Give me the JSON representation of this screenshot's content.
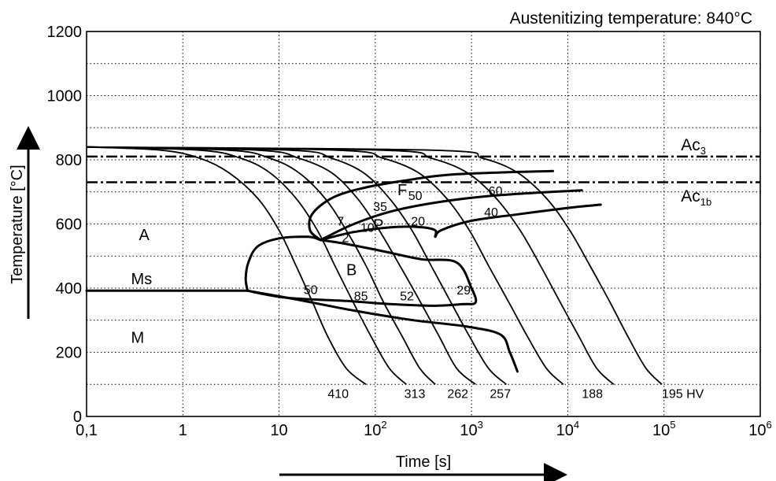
{
  "chart_data": {
    "type": "line",
    "title": "Austenitizing temperature: 840°C",
    "xlabel": "Time [s]",
    "ylabel": "Temperature [°C]",
    "x_scale": "log",
    "xlim": [
      0.1,
      1000000
    ],
    "ylim": [
      0,
      1200
    ],
    "grid": true,
    "x_ticks": [
      {
        "v": 0.1,
        "base": "0,1",
        "exp": ""
      },
      {
        "v": 1,
        "base": "1",
        "exp": ""
      },
      {
        "v": 10,
        "base": "10",
        "exp": ""
      },
      {
        "v": 100,
        "base": "10",
        "exp": "2"
      },
      {
        "v": 1000,
        "base": "10",
        "exp": "3"
      },
      {
        "v": 10000,
        "base": "10",
        "exp": "4"
      },
      {
        "v": 100000,
        "base": "10",
        "exp": "5"
      },
      {
        "v": 1000000,
        "base": "10",
        "exp": "6"
      }
    ],
    "y_ticks": [
      {
        "v": 0,
        "label": "0"
      },
      {
        "v": 200,
        "label": "200"
      },
      {
        "v": 400,
        "label": "400"
      },
      {
        "v": 600,
        "label": "600"
      },
      {
        "v": 800,
        "label": "800"
      },
      {
        "v": 1000,
        "label": "1000"
      },
      {
        "v": 1200,
        "label": "1200"
      }
    ],
    "reference_lines": [
      {
        "y": 810,
        "base": "Ac",
        "sub": "3",
        "lx": 150000.0,
        "ly": 830
      },
      {
        "y": 730,
        "base": "Ac",
        "sub": "1b",
        "lx": 150000.0,
        "ly": 670
      }
    ],
    "cooling_curves": [
      {
        "hardness": "410",
        "points": [
          [
            0.1,
            840
          ],
          [
            0.6,
            830
          ],
          [
            1.5,
            805
          ],
          [
            3,
            760
          ],
          [
            6,
            680
          ],
          [
            10,
            580
          ],
          [
            15,
            470
          ],
          [
            22,
            360
          ],
          [
            32,
            250
          ],
          [
            50,
            150
          ],
          [
            80,
            100
          ]
        ]
      },
      {
        "hardness": "313",
        "points": [
          [
            0.1,
            840
          ],
          [
            1.5,
            830
          ],
          [
            4,
            805
          ],
          [
            8,
            760
          ],
          [
            15,
            680
          ],
          [
            25,
            580
          ],
          [
            38,
            470
          ],
          [
            58,
            360
          ],
          [
            90,
            250
          ],
          [
            140,
            150
          ],
          [
            210,
            100
          ]
        ]
      },
      {
        "hardness": "262",
        "points": [
          [
            0.1,
            840
          ],
          [
            3,
            830
          ],
          [
            8,
            805
          ],
          [
            16,
            760
          ],
          [
            30,
            680
          ],
          [
            50,
            580
          ],
          [
            80,
            470
          ],
          [
            120,
            360
          ],
          [
            190,
            250
          ],
          [
            290,
            150
          ],
          [
            420,
            100
          ]
        ]
      },
      {
        "hardness": "257",
        "points": [
          [
            0.1,
            840
          ],
          [
            6,
            830
          ],
          [
            16,
            805
          ],
          [
            35,
            760
          ],
          [
            65,
            680
          ],
          [
            110,
            580
          ],
          [
            180,
            470
          ],
          [
            290,
            360
          ],
          [
            460,
            250
          ],
          [
            700,
            150
          ],
          [
            1100,
            100
          ]
        ]
      },
      {
        "hardness": "",
        "points": [
          [
            0.1,
            840
          ],
          [
            13,
            830
          ],
          [
            35,
            805
          ],
          [
            75,
            760
          ],
          [
            140,
            680
          ],
          [
            240,
            580
          ],
          [
            380,
            470
          ],
          [
            600,
            360
          ],
          [
            950,
            250
          ],
          [
            1500,
            150
          ],
          [
            2300,
            100
          ]
        ]
      },
      {
        "hardness": "188",
        "points": [
          [
            0.1,
            840
          ],
          [
            40,
            830
          ],
          [
            120,
            805
          ],
          [
            280,
            760
          ],
          [
            550,
            680
          ],
          [
            950,
            580
          ],
          [
            1500,
            470
          ],
          [
            2400,
            360
          ],
          [
            3800,
            250
          ],
          [
            6000,
            150
          ],
          [
            9000,
            100
          ]
        ]
      },
      {
        "hardness": "",
        "points": [
          [
            0.1,
            840
          ],
          [
            120,
            830
          ],
          [
            380,
            805
          ],
          [
            900,
            760
          ],
          [
            1800,
            680
          ],
          [
            3200,
            580
          ],
          [
            5200,
            470
          ],
          [
            8200,
            360
          ],
          [
            13000,
            250
          ],
          [
            20000,
            150
          ],
          [
            30000,
            100
          ]
        ]
      },
      {
        "hardness": "195",
        "points": [
          [
            0.1,
            840
          ],
          [
            400,
            830
          ],
          [
            1300,
            805
          ],
          [
            3000,
            760
          ],
          [
            6000,
            680
          ],
          [
            10500,
            580
          ],
          [
            17000,
            470
          ],
          [
            27000,
            360
          ],
          [
            42000,
            250
          ],
          [
            65000,
            150
          ],
          [
            95000,
            100
          ]
        ]
      }
    ],
    "transformation_lines": [
      {
        "name": "ferrite-start",
        "points": [
          [
            27,
            550
          ],
          [
            21,
            580
          ],
          [
            22,
            630
          ],
          [
            35,
            680
          ],
          [
            70,
            710
          ],
          [
            200,
            735
          ],
          [
            700,
            755
          ],
          [
            7000,
            765
          ]
        ]
      },
      {
        "name": "pearlite-start",
        "points": [
          [
            27,
            550
          ],
          [
            60,
            600
          ],
          [
            150,
            640
          ],
          [
            500,
            670
          ],
          [
            2000,
            690
          ],
          [
            14000,
            705
          ]
        ]
      },
      {
        "name": "pearlite-finish",
        "points": [
          [
            27,
            550
          ],
          [
            60,
            575
          ],
          [
            150,
            590
          ],
          [
            300,
            590
          ],
          [
            420,
            580
          ],
          [
            420,
            560
          ],
          [
            480,
            580
          ],
          [
            1000,
            610
          ],
          [
            3000,
            630
          ],
          [
            10000,
            650
          ],
          [
            22000,
            660
          ]
        ]
      },
      {
        "name": "bainite-start",
        "points": [
          [
            27,
            550
          ],
          [
            20,
            560
          ],
          [
            10,
            555
          ],
          [
            6,
            530
          ],
          [
            4.8,
            480
          ],
          [
            4.5,
            430
          ],
          [
            4.7,
            392
          ]
        ]
      },
      {
        "name": "bainite-finish",
        "points": [
          [
            27,
            550
          ],
          [
            45,
            540
          ],
          [
            120,
            515
          ],
          [
            300,
            490
          ],
          [
            700,
            480
          ],
          [
            1000,
            400
          ],
          [
            1100,
            355
          ],
          [
            800,
            350
          ],
          [
            400,
            345
          ],
          [
            150,
            350
          ],
          [
            50,
            360
          ],
          [
            12,
            370
          ],
          [
            4.7,
            392
          ]
        ]
      },
      {
        "name": "martensite-finish",
        "points": [
          [
            4.7,
            392
          ],
          [
            15,
            365
          ],
          [
            60,
            330
          ],
          [
            250,
            300
          ],
          [
            900,
            280
          ],
          [
            2000,
            255
          ],
          [
            2500,
            200
          ],
          [
            3000,
            140
          ]
        ]
      },
      {
        "name": "ms",
        "points": [
          [
            0.1,
            392
          ],
          [
            4.7,
            392
          ]
        ]
      }
    ],
    "annotations": [
      {
        "text": "A",
        "x": 0.35,
        "y": 550
      },
      {
        "text": "Ms",
        "x": 0.29,
        "y": 412
      },
      {
        "text": "M",
        "x": 0.29,
        "y": 230
      },
      {
        "text": "B",
        "x": 50,
        "y": 440
      },
      {
        "text": "F",
        "x": 170,
        "y": 690
      },
      {
        "text": "P",
        "x": 95,
        "y": 580
      },
      {
        "text": "7",
        "x": 40,
        "y": 595
      },
      {
        "text": "35",
        "x": 95,
        "y": 640
      },
      {
        "text": "50",
        "x": 220,
        "y": 675
      },
      {
        "text": "60",
        "x": 1500,
        "y": 690
      },
      {
        "text": "10",
        "x": 70,
        "y": 575
      },
      {
        "text": "2",
        "x": 45,
        "y": 543
      },
      {
        "text": "20",
        "x": 235,
        "y": 595
      },
      {
        "text": "40",
        "x": 1350,
        "y": 623
      },
      {
        "text": "50",
        "x": 18,
        "y": 382
      },
      {
        "text": "85",
        "x": 60,
        "y": 362
      },
      {
        "text": "52",
        "x": 180,
        "y": 362
      },
      {
        "text": "29",
        "x": 700,
        "y": 380
      },
      {
        "text": "410",
        "x": 32,
        "y": 58
      },
      {
        "text": "313",
        "x": 200,
        "y": 58
      },
      {
        "text": "262",
        "x": 560,
        "y": 58
      },
      {
        "text": "257",
        "x": 1550,
        "y": 58
      },
      {
        "text": "188",
        "x": 14000,
        "y": 58
      },
      {
        "text": "195 HV",
        "x": 95000,
        "y": 58
      }
    ]
  }
}
